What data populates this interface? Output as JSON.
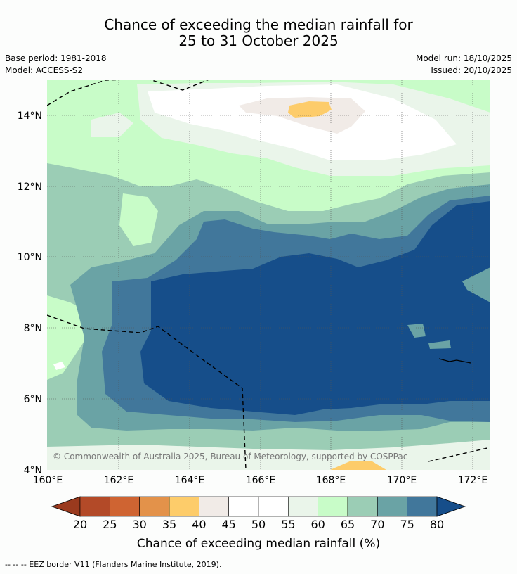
{
  "title": {
    "line1": "Chance of exceeding the median rainfall for",
    "line2": "25 to 31 October 2025"
  },
  "meta": {
    "base_period": "Base period: 1981-2018",
    "model": "Model: ACCESS-S2",
    "model_run": "Model run: 18/10/2025",
    "issued": "Issued: 20/10/2025"
  },
  "map": {
    "lat_labels": [
      "14°N",
      "12°N",
      "10°N",
      "8°N",
      "6°N",
      "4°N"
    ],
    "lon_labels": [
      "160°E",
      "162°E",
      "164°E",
      "166°E",
      "168°E",
      "170°E",
      "172°E"
    ],
    "copyright": "© Commonwealth of Australia 2025, Bureau of Meteorology, supported by COSPPac"
  },
  "colorbar": {
    "ticks": [
      "20",
      "25",
      "30",
      "35",
      "40",
      "45",
      "50",
      "55",
      "60",
      "65",
      "70",
      "75",
      "80"
    ],
    "colors": [
      "#b34a28",
      "#cf6432",
      "#e3924a",
      "#fdcc6a",
      "#f1ebe7",
      "#ffffff",
      "#ffffff",
      "#eaf5ea",
      "#c8fcc8",
      "#9bcdb5",
      "#6aa3a5",
      "#41779b"
    ],
    "under_color": "#9a3a1e",
    "over_color": "#164e8a",
    "label": "Chance of exceeding median rainfall (%)"
  },
  "footer": "-- -- -- EEZ border V11 (Flanders Marine Institute, 2019)."
}
